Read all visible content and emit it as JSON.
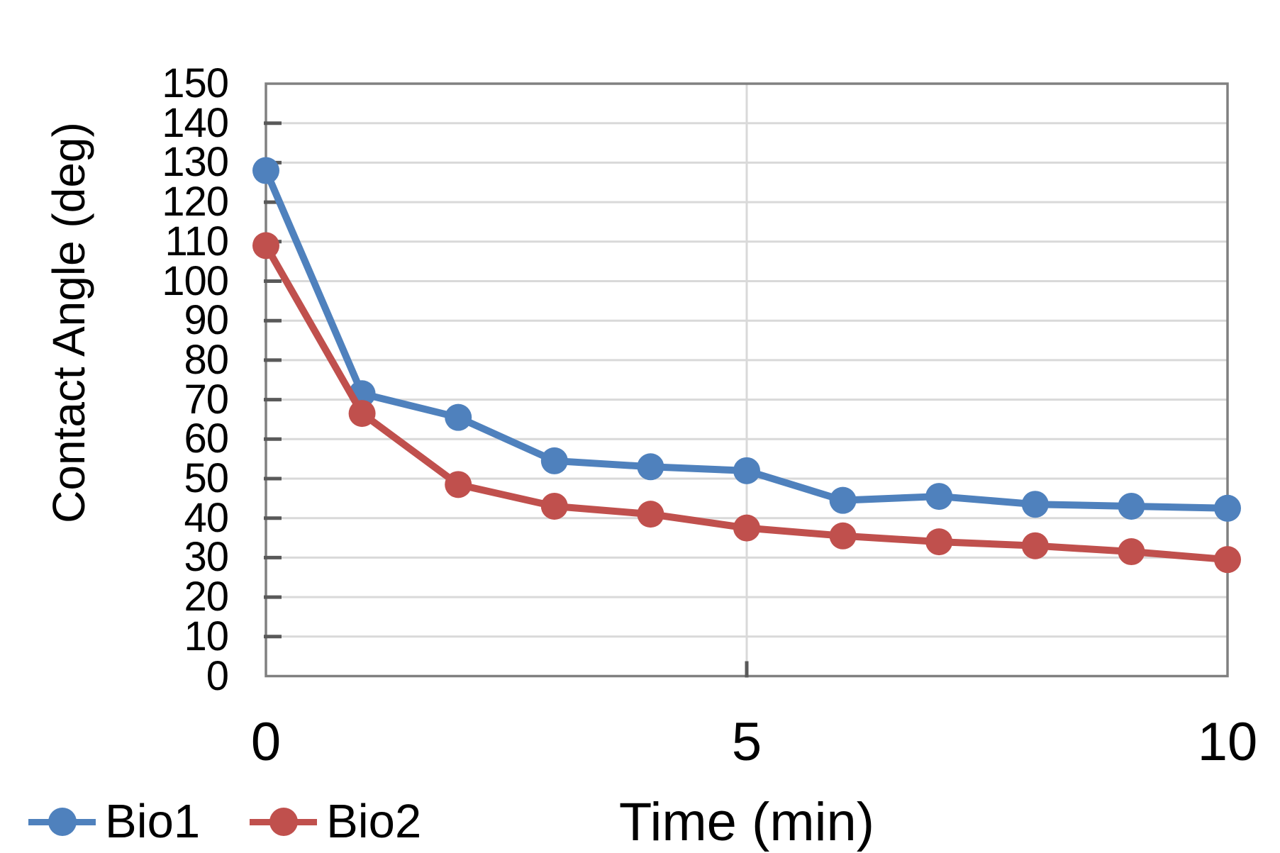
{
  "chart_data": {
    "type": "line",
    "x": [
      0,
      1,
      2,
      3,
      4,
      5,
      6,
      7,
      8,
      9,
      10
    ],
    "series": [
      {
        "name": "Bio1",
        "color": "#4F81BD",
        "values": [
          128,
          71.5,
          65.5,
          54.5,
          53,
          52,
          44.5,
          45.5,
          43.5,
          43,
          42.5
        ]
      },
      {
        "name": "Bio2",
        "color": "#C0504D",
        "values": [
          109,
          66.5,
          48.5,
          43,
          41,
          37.5,
          35.5,
          34,
          33,
          31.5,
          29.5
        ]
      }
    ],
    "title": "",
    "xlabel": "Time (min)",
    "ylabel": "Contact Angle (deg)",
    "xlim": [
      0,
      10
    ],
    "ylim": [
      0,
      150
    ],
    "ytick_labels": [
      "0",
      "10",
      "20",
      "30",
      "40",
      "50",
      "60",
      "70",
      "80",
      "90",
      "100",
      "110",
      "120",
      "130",
      "140",
      "150"
    ],
    "xticks": [
      {
        "value": 0,
        "label": "0"
      },
      {
        "value": 5,
        "label": "5"
      },
      {
        "value": 10,
        "label": "10"
      }
    ],
    "grid": {
      "horizontal_step": 10,
      "vertical_at": [
        5
      ],
      "gridline_color": "#D9D9D9"
    },
    "axis_color": "#808080",
    "tick_color": "#595959",
    "text_color": "#000000",
    "background_color": "#FFFFFF",
    "legend": {
      "position": "bottom-left",
      "entries": [
        "Bio1",
        "Bio2"
      ]
    },
    "marker": {
      "shape": "circle",
      "radius": 19
    },
    "line_width": 10
  }
}
